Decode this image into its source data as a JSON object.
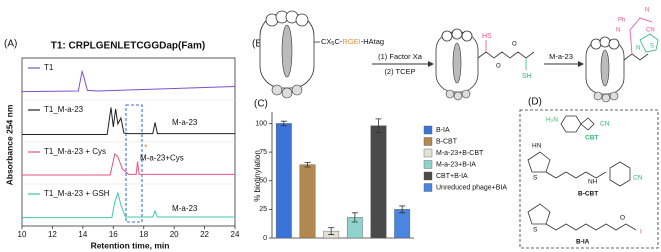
{
  "chart_data": [
    {
      "type": "line",
      "panel": "(A)",
      "title": "T1: CRPLGENLETCGGDap(Fam)",
      "x_label": "Retention time, min",
      "y_label": "Absorbance 254 nm",
      "xlim": [
        10,
        24
      ],
      "xticks": [
        10,
        12,
        14,
        16,
        18,
        20,
        22,
        24
      ],
      "series": [
        {
          "name": "T1",
          "color": "#7d4fd1",
          "x": [
            10,
            13.7,
            13.95,
            14.05,
            14.3,
            15,
            18,
            21,
            24
          ],
          "values": [
            0.08,
            0.1,
            0.75,
            0.6,
            0.12,
            0.1,
            0.15,
            0.2,
            0.25
          ]
        },
        {
          "name": "T1_M-a-23",
          "color": "#222222",
          "label": "M-a-23",
          "x": [
            10,
            15.6,
            15.85,
            16.0,
            16.15,
            16.3,
            16.5,
            16.7,
            17,
            18.6,
            18.75,
            18.9,
            24
          ],
          "values": [
            0.05,
            0.05,
            0.95,
            0.3,
            0.9,
            0.4,
            0.6,
            0.1,
            0.08,
            0.08,
            0.45,
            0.08,
            0.08
          ]
        },
        {
          "name": "T1_M-a-23 + Cys",
          "color": "#e8507f",
          "label": "M-a-23+Cys",
          "x": [
            10,
            15.8,
            16.1,
            16.3,
            16.6,
            17,
            17.5,
            17.6,
            17.7,
            24
          ],
          "values": [
            0.1,
            0.1,
            0.8,
            0.7,
            0.3,
            0.12,
            0.12,
            0.55,
            0.12,
            0.12
          ]
        },
        {
          "name": "T1_M-a-23 + GSH",
          "color": "#3ec9a7",
          "label": "M-a-23",
          "x": [
            10,
            15.9,
            16.1,
            16.3,
            16.5,
            16.8,
            18.6,
            18.75,
            18.9,
            24
          ],
          "values": [
            0.08,
            0.08,
            0.6,
            0.9,
            0.5,
            0.1,
            0.1,
            0.3,
            0.1,
            0.1
          ]
        }
      ]
    },
    {
      "type": "bar",
      "panel": "(C)",
      "y_label": "% biotinylation",
      "ylim": [
        0,
        110
      ],
      "yticks": [
        0,
        25,
        50,
        75,
        100
      ],
      "series": [
        {
          "name": "B-IA",
          "color": "#3b73d9",
          "values": [
            100
          ],
          "errors": [
            2
          ]
        },
        {
          "name": "B-CBT",
          "color": "#b08850",
          "values": [
            64
          ],
          "errors": [
            2
          ]
        },
        {
          "name": "M-a-23+B-CBT",
          "color": "#e4e1d4",
          "values": [
            6
          ],
          "errors": [
            3
          ]
        },
        {
          "name": "M-a-23+B-IA",
          "color": "#8fd3cc",
          "values": [
            18
          ],
          "errors": [
            4
          ]
        },
        {
          "name": "CBT+B-IA",
          "color": "#4a4a4a",
          "values": [
            98
          ],
          "errors": [
            6
          ]
        },
        {
          "name": "Unreduced phage+BIA",
          "color": "#4a86e0",
          "values": [
            25
          ],
          "errors": [
            3
          ]
        }
      ]
    }
  ],
  "panel_b": {
    "label": "(B)",
    "linker": [
      "CX",
      "5",
      "C-",
      "RGEI",
      "-HAtag"
    ],
    "step1": "(1) Factor Xa",
    "step2": "(2) TCEP",
    "reagent": "M-a-23",
    "atoms": [
      "HS",
      "SH",
      "O",
      "O",
      "N",
      "N",
      "CN",
      "Ph",
      "S",
      "N"
    ]
  },
  "panel_d": {
    "label": "(D)",
    "compounds": [
      "CBT",
      "B-CBT",
      "B-IA"
    ],
    "atoms": [
      "H₂N",
      "CN",
      "CN",
      "HN",
      "NH",
      "S",
      "S",
      "O",
      "I"
    ]
  }
}
